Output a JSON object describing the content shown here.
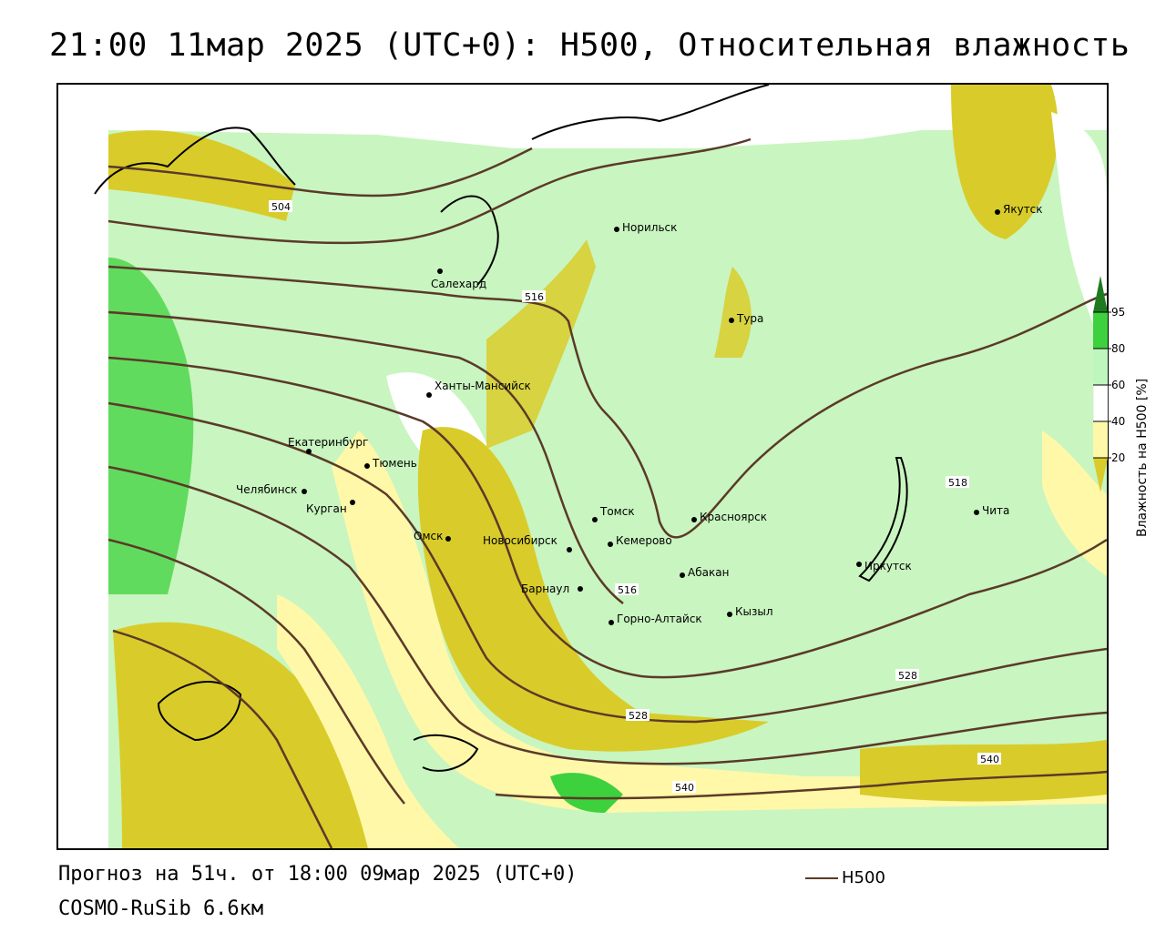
{
  "header": {
    "title": "21:00 11мар 2025 (UTC+0): H500, Относительная влажность"
  },
  "footer": {
    "forecast": "Прогноз на 51ч. от 18:00 09мар 2025 (UTC+0)",
    "model": "COSMO-RuSib 6.6км",
    "contour_legend": "H500"
  },
  "colorbar": {
    "title": "Влажность на H500 [%]",
    "ticks": [
      "95",
      "80",
      "60",
      "40",
      "20"
    ],
    "colors": {
      "above_95": "#1f7a1f",
      "80_95": "#3dd13d",
      "60_80": "#bff5bf",
      "40_60": "#ffffff",
      "20_40": "#fff8a8",
      "below_20": "#d9cc2a"
    }
  },
  "contours": {
    "color": "#5b3a29",
    "labels": [
      "504",
      "516",
      "516",
      "518",
      "528",
      "528",
      "540",
      "540"
    ]
  },
  "cities": [
    {
      "name": "Якутск"
    },
    {
      "name": "Норильск"
    },
    {
      "name": "Салехард"
    },
    {
      "name": "Тура"
    },
    {
      "name": "Ханты-Мансийск"
    },
    {
      "name": "Екатеринбург"
    },
    {
      "name": "Тюмень"
    },
    {
      "name": "Челябинск"
    },
    {
      "name": "Курган"
    },
    {
      "name": "Томск"
    },
    {
      "name": "Красноярск"
    },
    {
      "name": "Омск"
    },
    {
      "name": "Новосибирск"
    },
    {
      "name": "Кемерово"
    },
    {
      "name": "Абакан"
    },
    {
      "name": "Иркутск"
    },
    {
      "name": "Чита"
    },
    {
      "name": "Барнаул"
    },
    {
      "name": "Горно-Алтайск"
    },
    {
      "name": "Кызыл"
    }
  ]
}
